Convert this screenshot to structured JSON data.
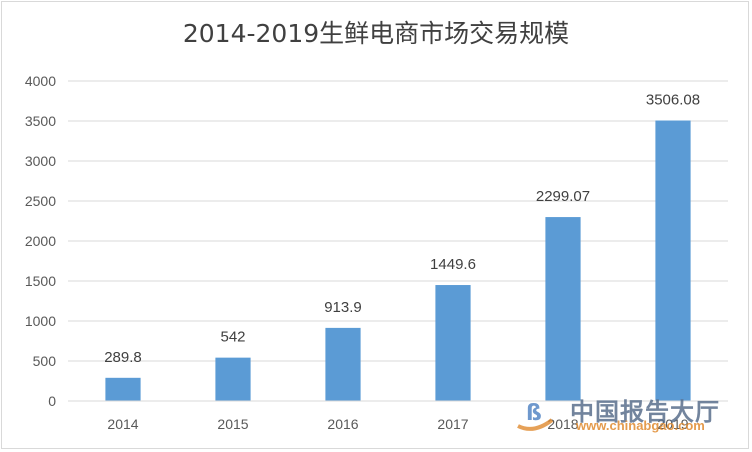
{
  "chart_data": {
    "type": "bar",
    "title": "2014-2019生鲜电商市场交易规模",
    "categories": [
      "2014",
      "2015",
      "2016",
      "2017",
      "2018",
      "2019"
    ],
    "values": [
      289.8,
      542,
      913.9,
      1449.6,
      2299.07,
      3506.08
    ],
    "data_labels": [
      "289.8",
      "542",
      "913.9",
      "1449.6",
      "2299.07",
      "3506.08"
    ],
    "yticks": [
      0,
      500,
      1000,
      1500,
      2000,
      2500,
      3000,
      3500,
      4000
    ],
    "ylim": [
      0,
      4000
    ],
    "xlabel": "",
    "ylabel": "",
    "grid": true,
    "bar_color": "#5b9bd5",
    "grid_color": "#d9d9d9"
  },
  "watermark": {
    "text": "中国报告大厅",
    "url": "www.chinabgao.com"
  }
}
